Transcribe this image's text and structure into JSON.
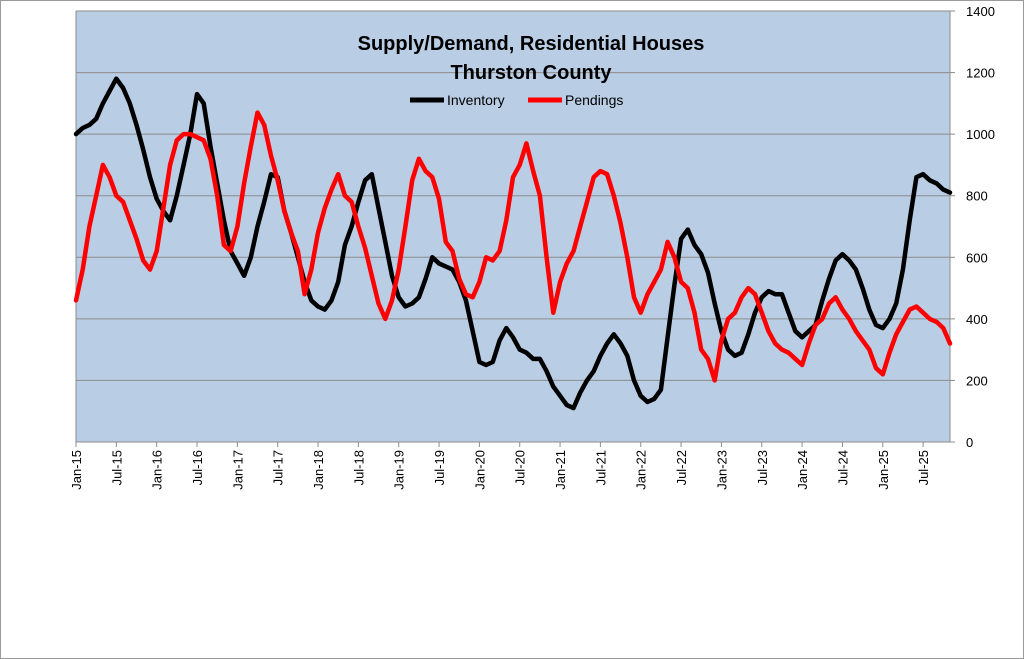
{
  "chart_data": {
    "type": "line",
    "title": "Supply/Demand, Residential Houses",
    "subtitle": "Thurston County",
    "xlabel": "",
    "ylabel": "",
    "ylim": [
      0,
      1400
    ],
    "yticks": [
      0,
      200,
      400,
      600,
      800,
      1000,
      1200,
      1400
    ],
    "x_tick_labels": [
      "Jan-15",
      "Jul-15",
      "Jan-16",
      "Jul-16",
      "Jan-17",
      "Jul-17",
      "Jan-18",
      "Jul-18",
      "Jan-19",
      "Jul-19",
      "Jan-20",
      "Jul-20",
      "Jan-21",
      "Jul-21",
      "Jan-22",
      "Jul-22",
      "Jan-23",
      "Jul-23",
      "Jan-24",
      "Jul-24",
      "Jan-25",
      "Jul-25"
    ],
    "x_range": [
      "Jan-15",
      "Nov-25"
    ],
    "y_axis_side": "right",
    "grid": "horizontal",
    "legend_position": "top-center",
    "background_color": "#b9cde5",
    "series": [
      {
        "name": "Inventory",
        "color": "#000000",
        "x": [
          "2015-01",
          "2015-02",
          "2015-03",
          "2015-04",
          "2015-05",
          "2015-06",
          "2015-07",
          "2015-08",
          "2015-09",
          "2015-10",
          "2015-11",
          "2015-12",
          "2016-01",
          "2016-02",
          "2016-03",
          "2016-04",
          "2016-05",
          "2016-06",
          "2016-07",
          "2016-08",
          "2016-09",
          "2016-10",
          "2016-11",
          "2016-12",
          "2017-01",
          "2017-02",
          "2017-03",
          "2017-04",
          "2017-05",
          "2017-06",
          "2017-07",
          "2017-08",
          "2017-09",
          "2017-10",
          "2017-11",
          "2017-12",
          "2018-01",
          "2018-02",
          "2018-03",
          "2018-04",
          "2018-05",
          "2018-06",
          "2018-07",
          "2018-08",
          "2018-09",
          "2018-10",
          "2018-11",
          "2018-12",
          "2019-01",
          "2019-02",
          "2019-03",
          "2019-04",
          "2019-05",
          "2019-06",
          "2019-07",
          "2019-08",
          "2019-09",
          "2019-10",
          "2019-11",
          "2019-12",
          "2020-01",
          "2020-02",
          "2020-03",
          "2020-04",
          "2020-05",
          "2020-06",
          "2020-07",
          "2020-08",
          "2020-09",
          "2020-10",
          "2020-11",
          "2020-12",
          "2021-01",
          "2021-02",
          "2021-03",
          "2021-04",
          "2021-05",
          "2021-06",
          "2021-07",
          "2021-08",
          "2021-09",
          "2021-10",
          "2021-11",
          "2021-12",
          "2022-01",
          "2022-02",
          "2022-03",
          "2022-04",
          "2022-05",
          "2022-06",
          "2022-07",
          "2022-08",
          "2022-09",
          "2022-10",
          "2022-11",
          "2022-12",
          "2023-01",
          "2023-02",
          "2023-03",
          "2023-04",
          "2023-05",
          "2023-06",
          "2023-07",
          "2023-08",
          "2023-09",
          "2023-10",
          "2023-11",
          "2023-12",
          "2024-01",
          "2024-02",
          "2024-03",
          "2024-04",
          "2024-05",
          "2024-06",
          "2024-07",
          "2024-08",
          "2024-09",
          "2024-10",
          "2024-11",
          "2024-12",
          "2025-01",
          "2025-02",
          "2025-03",
          "2025-04",
          "2025-05",
          "2025-06",
          "2025-07",
          "2025-08",
          "2025-09",
          "2025-10",
          "2025-11"
        ],
        "values": [
          1000,
          1020,
          1030,
          1050,
          1100,
          1140,
          1180,
          1150,
          1100,
          1030,
          950,
          860,
          790,
          750,
          720,
          800,
          900,
          1000,
          1130,
          1100,
          960,
          840,
          720,
          620,
          580,
          540,
          600,
          700,
          780,
          870,
          860,
          750,
          680,
          600,
          520,
          460,
          440,
          430,
          460,
          520,
          640,
          700,
          780,
          850,
          870,
          760,
          650,
          540,
          470,
          440,
          450,
          470,
          530,
          600,
          580,
          570,
          560,
          520,
          460,
          360,
          260,
          250,
          260,
          330,
          370,
          340,
          300,
          290,
          270,
          270,
          230,
          180,
          150,
          120,
          110,
          160,
          200,
          230,
          280,
          320,
          350,
          320,
          280,
          200,
          150,
          130,
          140,
          170,
          340,
          510,
          660,
          690,
          640,
          610,
          550,
          450,
          360,
          300,
          280,
          290,
          350,
          420,
          470,
          490,
          480,
          480,
          420,
          360,
          340,
          360,
          380,
          460,
          530,
          590,
          610,
          590,
          560,
          500,
          430,
          380,
          370,
          400,
          450,
          560,
          720,
          860,
          870,
          850,
          840,
          820,
          810
        ]
      },
      {
        "name": "Pendings",
        "color": "#ff0000",
        "x": [
          "2015-01",
          "2015-02",
          "2015-03",
          "2015-04",
          "2015-05",
          "2015-06",
          "2015-07",
          "2015-08",
          "2015-09",
          "2015-10",
          "2015-11",
          "2015-12",
          "2016-01",
          "2016-02",
          "2016-03",
          "2016-04",
          "2016-05",
          "2016-06",
          "2016-07",
          "2016-08",
          "2016-09",
          "2016-10",
          "2016-11",
          "2016-12",
          "2017-01",
          "2017-02",
          "2017-03",
          "2017-04",
          "2017-05",
          "2017-06",
          "2017-07",
          "2017-08",
          "2017-09",
          "2017-10",
          "2017-11",
          "2017-12",
          "2018-01",
          "2018-02",
          "2018-03",
          "2018-04",
          "2018-05",
          "2018-06",
          "2018-07",
          "2018-08",
          "2018-09",
          "2018-10",
          "2018-11",
          "2018-12",
          "2019-01",
          "2019-02",
          "2019-03",
          "2019-04",
          "2019-05",
          "2019-06",
          "2019-07",
          "2019-08",
          "2019-09",
          "2019-10",
          "2019-11",
          "2019-12",
          "2020-01",
          "2020-02",
          "2020-03",
          "2020-04",
          "2020-05",
          "2020-06",
          "2020-07",
          "2020-08",
          "2020-09",
          "2020-10",
          "2020-11",
          "2020-12",
          "2021-01",
          "2021-02",
          "2021-03",
          "2021-04",
          "2021-05",
          "2021-06",
          "2021-07",
          "2021-08",
          "2021-09",
          "2021-10",
          "2021-11",
          "2021-12",
          "2022-01",
          "2022-02",
          "2022-03",
          "2022-04",
          "2022-05",
          "2022-06",
          "2022-07",
          "2022-08",
          "2022-09",
          "2022-10",
          "2022-11",
          "2022-12",
          "2023-01",
          "2023-02",
          "2023-03",
          "2023-04",
          "2023-05",
          "2023-06",
          "2023-07",
          "2023-08",
          "2023-09",
          "2023-10",
          "2023-11",
          "2023-12",
          "2024-01",
          "2024-02",
          "2024-03",
          "2024-04",
          "2024-05",
          "2024-06",
          "2024-07",
          "2024-08",
          "2024-09",
          "2024-10",
          "2024-11",
          "2024-12",
          "2025-01",
          "2025-02",
          "2025-03",
          "2025-04",
          "2025-05",
          "2025-06",
          "2025-07",
          "2025-08",
          "2025-09",
          "2025-10",
          "2025-11"
        ],
        "values": [
          460,
          560,
          700,
          800,
          900,
          860,
          800,
          780,
          720,
          660,
          590,
          560,
          620,
          760,
          900,
          980,
          1000,
          1000,
          990,
          980,
          920,
          800,
          640,
          620,
          700,
          840,
          960,
          1070,
          1030,
          930,
          850,
          750,
          680,
          620,
          480,
          560,
          680,
          760,
          820,
          870,
          800,
          780,
          700,
          630,
          540,
          450,
          400,
          460,
          560,
          700,
          850,
          920,
          880,
          860,
          790,
          650,
          620,
          530,
          480,
          470,
          520,
          600,
          590,
          620,
          720,
          860,
          900,
          970,
          880,
          800,
          600,
          420,
          520,
          580,
          620,
          700,
          780,
          860,
          880,
          870,
          800,
          710,
          600,
          470,
          420,
          480,
          520,
          560,
          650,
          600,
          520,
          500,
          420,
          300,
          270,
          200,
          330,
          400,
          420,
          470,
          500,
          480,
          420,
          360,
          320,
          300,
          290,
          270,
          250,
          320,
          380,
          400,
          450,
          470,
          430,
          400,
          360,
          330,
          300,
          240,
          220,
          290,
          350,
          390,
          430,
          440,
          420,
          400,
          390,
          370,
          320
        ]
      }
    ]
  }
}
